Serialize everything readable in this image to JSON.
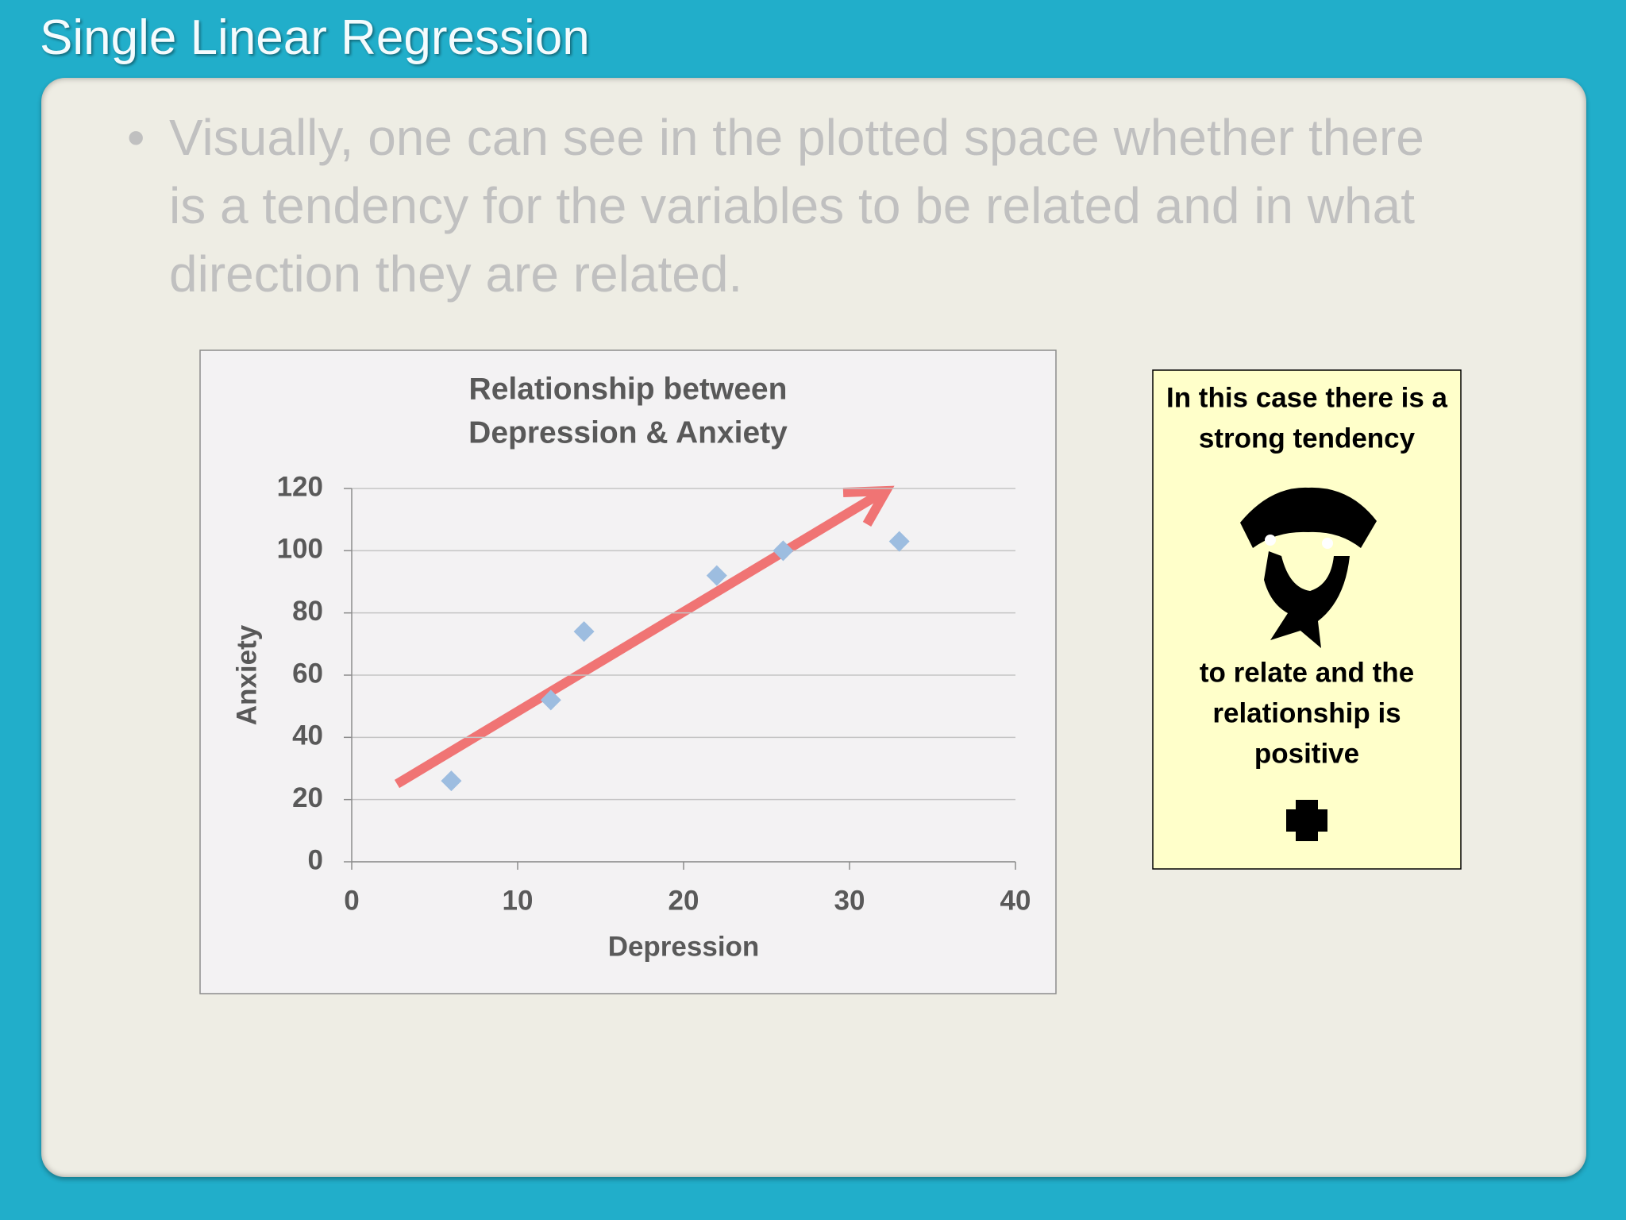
{
  "slide_title": "Single Linear Regression",
  "bullet": "Visually, one can see in the plotted space whether there is a tendency for the variables to be related and in what direction they are related.",
  "chart_data": {
    "type": "scatter",
    "title": [
      "Relationship between",
      "Depression & Anxiety"
    ],
    "xlabel": "Depression",
    "ylabel": "Anxiety",
    "x": [
      6,
      12,
      14,
      22,
      26,
      33
    ],
    "values": [
      26,
      52,
      74,
      92,
      100,
      103
    ],
    "color": "#9dbde0",
    "xlim": [
      0,
      40
    ],
    "xticks": [
      0,
      10,
      20,
      30,
      40
    ],
    "ylim": [
      0,
      120
    ],
    "yticks": [
      0,
      20,
      40,
      60,
      80,
      100,
      120
    ],
    "grid": true
  },
  "callout": {
    "top": [
      "In this case there is a",
      "strong tendency"
    ],
    "bottom": [
      "to relate and the",
      "relationship is",
      "positive"
    ]
  }
}
